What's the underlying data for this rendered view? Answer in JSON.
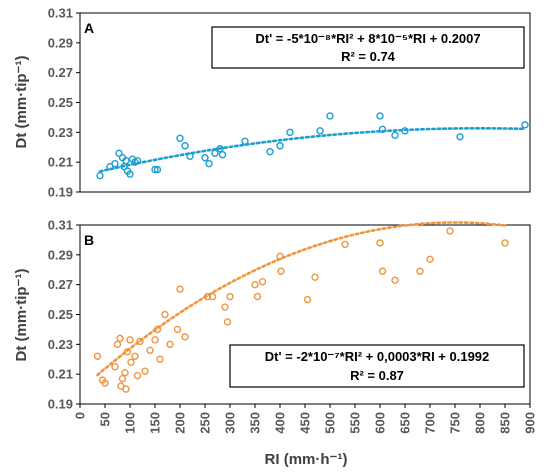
{
  "chart_data": [
    {
      "type": "scatter",
      "panel": "A",
      "ylabel": "Dt (mm·tip⁻¹)",
      "xlim": [
        0,
        900
      ],
      "ylim": [
        0.19,
        0.31
      ],
      "yticks": [
        "0.19",
        "0.21",
        "0.23",
        "0.25",
        "0.27",
        "0.29",
        "0.31"
      ],
      "color": "#1b9fd1",
      "equation": "Dt' = -5*10⁻⁸*RI² + 8*10⁻⁵*RI + 0.2007",
      "r2_text": "R² = 0.74",
      "trend_coeffs": {
        "a": -5e-08,
        "b": 8e-05,
        "c": 0.2007
      },
      "points": [
        [
          40,
          0.201
        ],
        [
          60,
          0.207
        ],
        [
          70,
          0.209
        ],
        [
          78,
          0.216
        ],
        [
          85,
          0.213
        ],
        [
          88,
          0.207
        ],
        [
          92,
          0.211
        ],
        [
          95,
          0.204
        ],
        [
          100,
          0.202
        ],
        [
          105,
          0.212
        ],
        [
          110,
          0.21
        ],
        [
          115,
          0.211
        ],
        [
          150,
          0.205
        ],
        [
          155,
          0.205
        ],
        [
          200,
          0.226
        ],
        [
          210,
          0.221
        ],
        [
          220,
          0.214
        ],
        [
          250,
          0.213
        ],
        [
          258,
          0.209
        ],
        [
          270,
          0.216
        ],
        [
          280,
          0.219
        ],
        [
          285,
          0.215
        ],
        [
          330,
          0.224
        ],
        [
          380,
          0.217
        ],
        [
          400,
          0.221
        ],
        [
          420,
          0.23
        ],
        [
          480,
          0.231
        ],
        [
          500,
          0.241
        ],
        [
          600,
          0.241
        ],
        [
          605,
          0.232
        ],
        [
          630,
          0.228
        ],
        [
          650,
          0.231
        ],
        [
          760,
          0.227
        ],
        [
          890,
          0.235
        ]
      ]
    },
    {
      "type": "scatter",
      "panel": "B",
      "xlabel": "RI (mm·h⁻¹)",
      "ylabel": "Dt (mm·tip⁻¹)",
      "xlim": [
        0,
        900
      ],
      "ylim": [
        0.19,
        0.31
      ],
      "xticks": [
        "0",
        "50",
        "100",
        "150",
        "200",
        "250",
        "300",
        "350",
        "400",
        "450",
        "500",
        "550",
        "600",
        "650",
        "700",
        "750",
        "800",
        "850",
        "900"
      ],
      "yticks": [
        "0.19",
        "0.21",
        "0.23",
        "0.25",
        "0.27",
        "0.29",
        "0.31"
      ],
      "color": "#f0953f",
      "equation": "Dt' = -2*10⁻⁷*RI² + 0,0003*RI + 0.1992",
      "r2_text": "R² = 0.87",
      "trend_coeffs": {
        "a": -2e-07,
        "b": 0.0003,
        "c": 0.1992
      },
      "points": [
        [
          35,
          0.222
        ],
        [
          45,
          0.206
        ],
        [
          50,
          0.204
        ],
        [
          70,
          0.215
        ],
        [
          75,
          0.23
        ],
        [
          80,
          0.234
        ],
        [
          82,
          0.202
        ],
        [
          85,
          0.207
        ],
        [
          90,
          0.211
        ],
        [
          92,
          0.2
        ],
        [
          95,
          0.225
        ],
        [
          100,
          0.233
        ],
        [
          102,
          0.218
        ],
        [
          110,
          0.222
        ],
        [
          115,
          0.209
        ],
        [
          120,
          0.232
        ],
        [
          130,
          0.212
        ],
        [
          140,
          0.226
        ],
        [
          150,
          0.233
        ],
        [
          155,
          0.24
        ],
        [
          160,
          0.22
        ],
        [
          170,
          0.25
        ],
        [
          180,
          0.23
        ],
        [
          195,
          0.24
        ],
        [
          200,
          0.267
        ],
        [
          210,
          0.235
        ],
        [
          255,
          0.262
        ],
        [
          265,
          0.262
        ],
        [
          290,
          0.255
        ],
        [
          295,
          0.245
        ],
        [
          300,
          0.262
        ],
        [
          350,
          0.27
        ],
        [
          355,
          0.262
        ],
        [
          365,
          0.272
        ],
        [
          400,
          0.289
        ],
        [
          402,
          0.279
        ],
        [
          455,
          0.26
        ],
        [
          470,
          0.275
        ],
        [
          530,
          0.297
        ],
        [
          600,
          0.298
        ],
        [
          605,
          0.279
        ],
        [
          630,
          0.273
        ],
        [
          680,
          0.279
        ],
        [
          700,
          0.287
        ],
        [
          740,
          0.306
        ],
        [
          850,
          0.298
        ]
      ]
    }
  ]
}
